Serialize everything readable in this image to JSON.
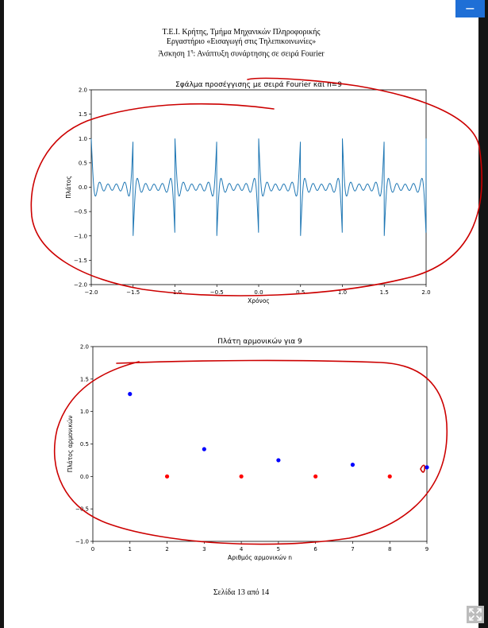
{
  "document": {
    "header": {
      "line1": "Τ.Ε.Ι. Κρήτης, Τμήμα Μηχανικών Πληροφορικής",
      "line2": "Εργαστήριο «Εισαγωγή στις Τηλεπικοινωνίες»",
      "line3_prefix": "Άσκηση 1",
      "line3_sup": "η",
      "line3_suffix": ": Ανάπτυξη συνάρτησης σε σειρά Fourier"
    },
    "footer": "Σελίδα 13 από 14"
  },
  "controls": {
    "collapse_icon": "minus-icon",
    "collapse_label": "−",
    "expand_icon": "expand-arrows-icon"
  },
  "annotations": {
    "color": "#cc0000"
  },
  "chart_data": [
    {
      "type": "line",
      "title": "Σφάλμα προσέγγισης με σειρά Fourier και n=9",
      "xlabel": "Χρόνος",
      "ylabel": "Πλάτος",
      "xlim": [
        -2.0,
        2.0
      ],
      "ylim": [
        -2.0,
        2.0
      ],
      "xticks": [
        "−2.0",
        "−1.5",
        "−1.0",
        "−0.5",
        "0.0",
        "0.5",
        "1.0",
        "1.5",
        "2.0"
      ],
      "yticks": [
        "−2.0",
        "−1.5",
        "−1.0",
        "−0.5",
        "0.0",
        "0.5",
        "1.0",
        "1.5",
        "2.0"
      ],
      "color": "#1f77b4",
      "n": 9,
      "period": 1.0,
      "series": [
        {
          "function": "square wave (±1, period 1) minus its Fourier series with harmonics 1,3,5,7,9",
          "x_range": [
            -2.0,
            2.0
          ]
        }
      ],
      "grid": false
    },
    {
      "type": "scatter",
      "title": "Πλάτη αρμονικών για 9",
      "xlabel": "Αριθμός αρμονικών n",
      "ylabel": "Πλάτος αρμονικών",
      "xlim": [
        0,
        9
      ],
      "ylim": [
        -1.0,
        2.0
      ],
      "xticks": [
        "0",
        "1",
        "2",
        "3",
        "4",
        "5",
        "6",
        "7",
        "8",
        "9"
      ],
      "yticks": [
        "−1.0",
        "−0.5",
        "0.0",
        "0.5",
        "1.0",
        "1.5",
        "2.0"
      ],
      "grid": false,
      "series": [
        {
          "color": "#0000ff",
          "x": [
            1,
            3,
            5,
            7,
            9
          ],
          "y": [
            1.27,
            0.42,
            0.25,
            0.18,
            0.14
          ]
        },
        {
          "color": "#ff0000",
          "x": [
            2,
            4,
            6,
            8
          ],
          "y": [
            0.0,
            0.0,
            0.0,
            0.0
          ]
        }
      ]
    }
  ]
}
